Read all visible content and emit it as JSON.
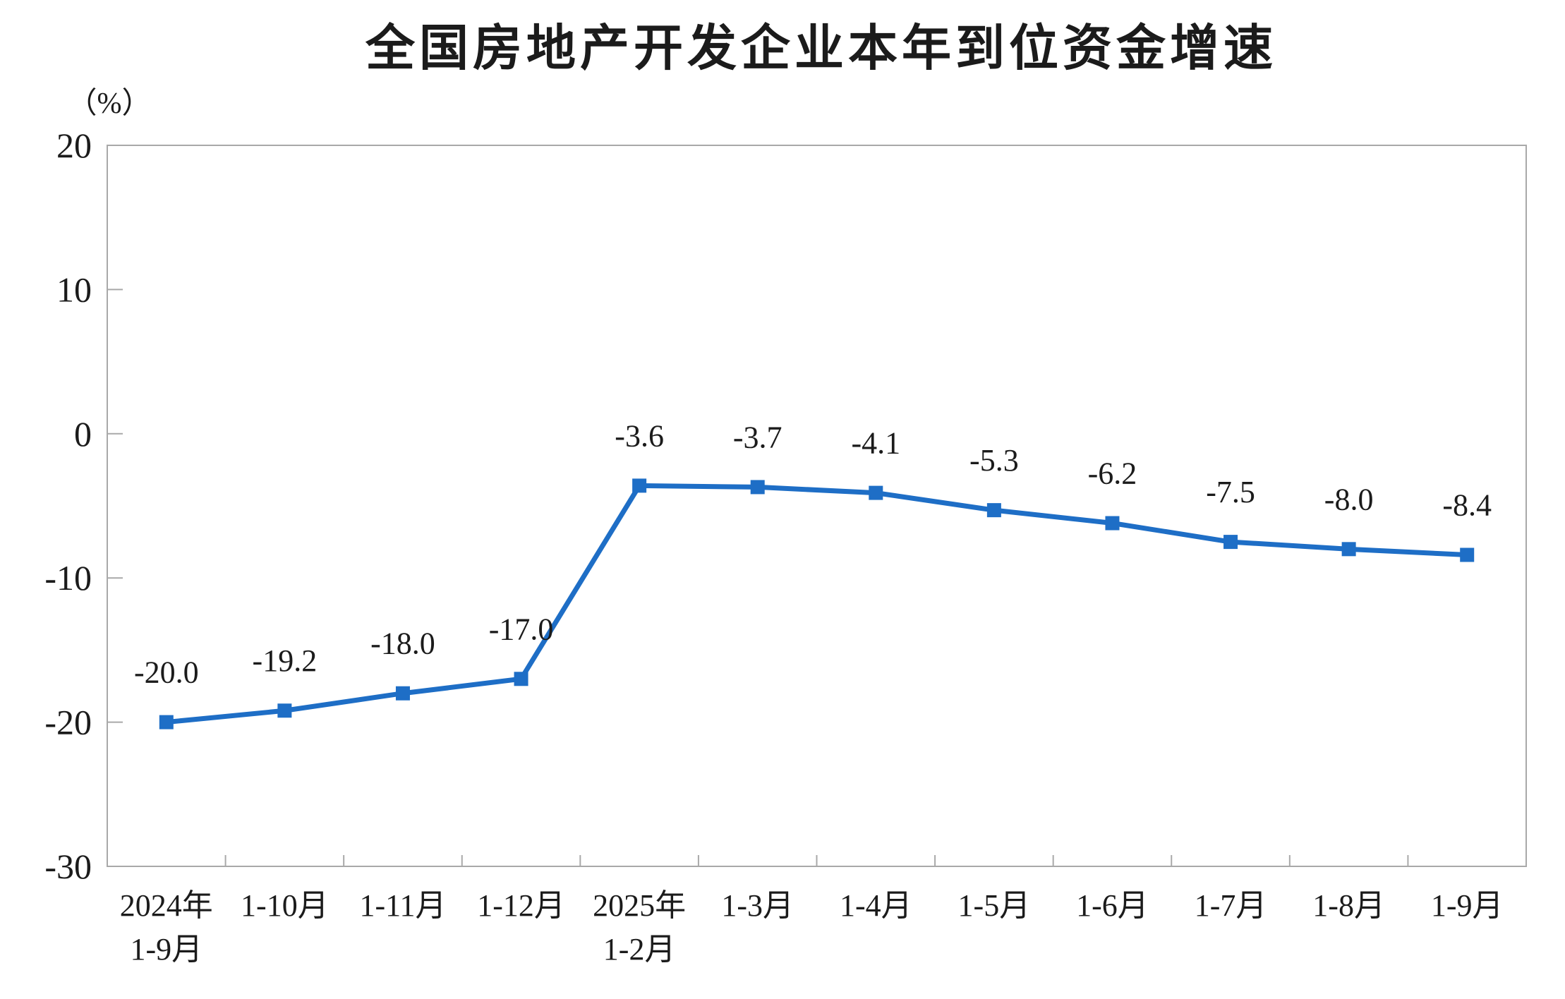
{
  "chart_data": {
    "type": "line",
    "title": "全国房地产开发企业本年到位资金增速",
    "ylabel": "（%）",
    "xlabel": "",
    "categories": [
      [
        "2024年",
        "1-9月"
      ],
      [
        "1-10月"
      ],
      [
        "1-11月"
      ],
      [
        "1-12月"
      ],
      [
        "2025年",
        "1-2月"
      ],
      [
        "1-3月"
      ],
      [
        "1-4月"
      ],
      [
        "1-5月"
      ],
      [
        "1-6月"
      ],
      [
        "1-7月"
      ],
      [
        "1-8月"
      ],
      [
        "1-9月"
      ]
    ],
    "series": [
      {
        "name": "本年到位资金增速",
        "values": [
          -20.0,
          -19.2,
          -18.0,
          -17.0,
          -3.6,
          -3.7,
          -4.1,
          -5.3,
          -6.2,
          -7.5,
          -8.0,
          -8.4
        ],
        "data_labels": [
          "-20.0",
          "-19.2",
          "-18.0",
          "-17.0",
          "-3.6",
          "-3.7",
          "-4.1",
          "-5.3",
          "-6.2",
          "-7.5",
          "-8.0",
          "-8.4"
        ]
      }
    ],
    "ylim": [
      -30,
      20
    ],
    "yticks": [
      20,
      10,
      0,
      -10,
      -20,
      -30
    ],
    "ytick_labels": [
      "20",
      "10",
      "0",
      "-10",
      "-20",
      "-30"
    ],
    "grid": false,
    "legend_position": "none",
    "marker": "square",
    "colors": {
      "line": "#1e6ec6",
      "marker": "#1e6ec6",
      "axis": "#a9a9a9",
      "text": "#1b1b1b",
      "background": "#ffffff"
    }
  }
}
